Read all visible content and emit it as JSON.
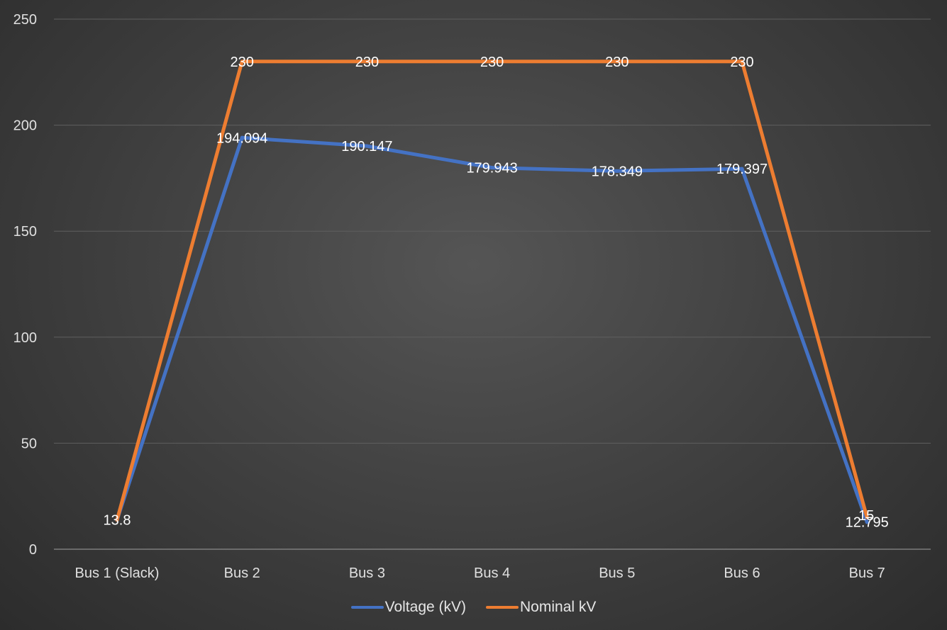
{
  "chart_data": {
    "type": "line",
    "categories": [
      "Bus 1 (Slack)",
      "Bus 2",
      "Bus 3",
      "Bus 4",
      "Bus 5",
      "Bus 6",
      "Bus 7"
    ],
    "series": [
      {
        "name": "Voltage (kV)",
        "color": "#4472c4",
        "values": [
          13.8,
          194.094,
          190.147,
          179.943,
          178.349,
          179.397,
          12.795
        ],
        "labels": [
          "13.8",
          "194.094",
          "190.147",
          "179.943",
          "178.349",
          "179.397",
          "12.795"
        ]
      },
      {
        "name": "Nominal kV",
        "color": "#ed7d31",
        "values": [
          13.8,
          230,
          230,
          230,
          230,
          230,
          15
        ],
        "labels": [
          "",
          "230",
          "230",
          "230",
          "230",
          "230",
          "15"
        ]
      }
    ],
    "ylim": [
      0,
      250
    ],
    "yticks": [
      "0",
      "50",
      "100",
      "150",
      "200",
      "250"
    ],
    "grid": true,
    "legend_position": "bottom",
    "title": "",
    "xlabel": "",
    "ylabel": ""
  }
}
